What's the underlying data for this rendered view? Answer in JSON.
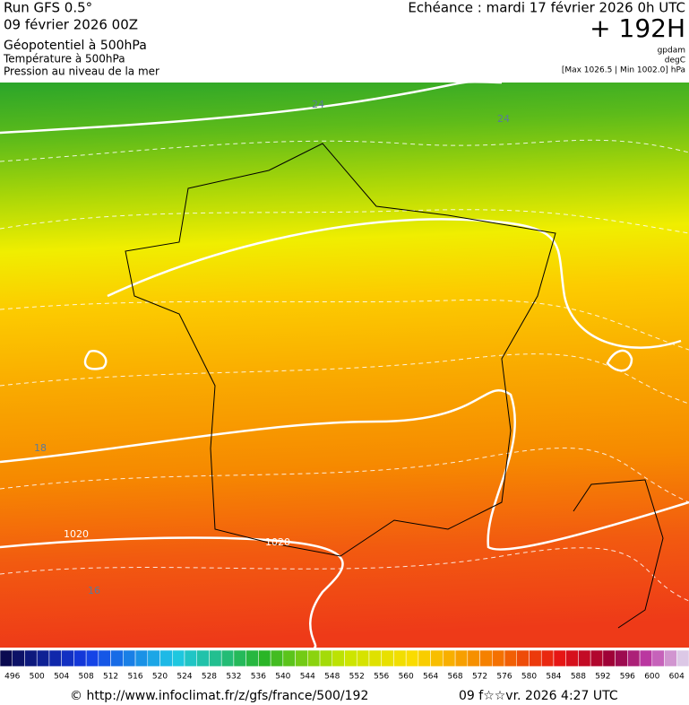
{
  "header": {
    "run": "Run GFS 0.5°",
    "date": "09 février 2026 00Z",
    "field1": "Géopotentiel à 500hPa",
    "field2": "Température à 500hPa",
    "field3": "Pression au niveau de la mer",
    "echeance": "Echéance : mardi 17 février 2026 0h UTC",
    "lead": "+ 192H",
    "unit1": "gpdam",
    "unit2": "degC",
    "pressure_range": "[Max 1026.5 | Min 1002.0] hPa"
  },
  "contour_labels": [
    "24",
    "24",
    "1020",
    "1020",
    "16",
    "18"
  ],
  "colorbar": {
    "labels": [
      496,
      500,
      504,
      508,
      512,
      516,
      520,
      524,
      528,
      532,
      536,
      540,
      544,
      548,
      552,
      556,
      560,
      564,
      568,
      572,
      576,
      580,
      584,
      588,
      592,
      596,
      600,
      604
    ]
  },
  "footer": {
    "url": "© http://www.infoclimat.fr/z/gfs/france/500/192",
    "timestamp": "09 f☆☆vr. 2026  4:27 UTC"
  }
}
